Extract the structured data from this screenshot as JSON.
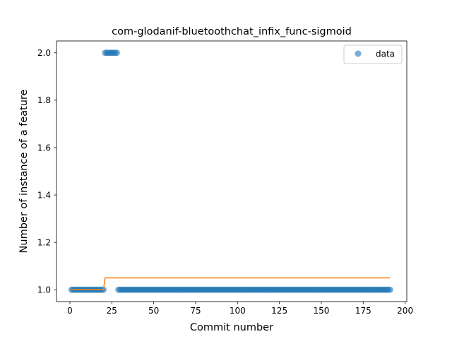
{
  "chart_data": {
    "type": "scatter",
    "title": "com-glodanif-bluetoothchat_infix_func-sigmoid",
    "xlabel": "Commit number",
    "ylabel": "Number of instance of a feature",
    "xlim": [
      -8,
      201
    ],
    "ylim": [
      0.95,
      2.05
    ],
    "xticks": [
      0,
      25,
      50,
      75,
      100,
      125,
      150,
      175,
      200
    ],
    "yticks": [
      1.0,
      1.2,
      1.4,
      1.6,
      1.8,
      2.0
    ],
    "xtick_labels": [
      "0",
      "25",
      "50",
      "75",
      "100",
      "125",
      "150",
      "175",
      "200"
    ],
    "ytick_labels": [
      "1.0",
      "1.2",
      "1.4",
      "1.6",
      "1.8",
      "2.0"
    ],
    "legend": {
      "placement": "top-right",
      "entries": [
        "data"
      ]
    },
    "grid": false,
    "series": [
      {
        "name": "data",
        "kind": "scatter",
        "color": "#1f77b4",
        "segments": [
          {
            "x_start": 1,
            "x_end": 20,
            "y": 1.0
          },
          {
            "x_start": 21,
            "x_end": 28,
            "y": 2.0
          },
          {
            "x_start": 29,
            "x_end": 191,
            "y": 1.0
          }
        ]
      },
      {
        "kind": "line",
        "color": "#ff7f0e",
        "x": [
          1,
          20,
          21,
          191
        ],
        "y": [
          1.0,
          1.0,
          1.05,
          1.05
        ]
      }
    ]
  }
}
